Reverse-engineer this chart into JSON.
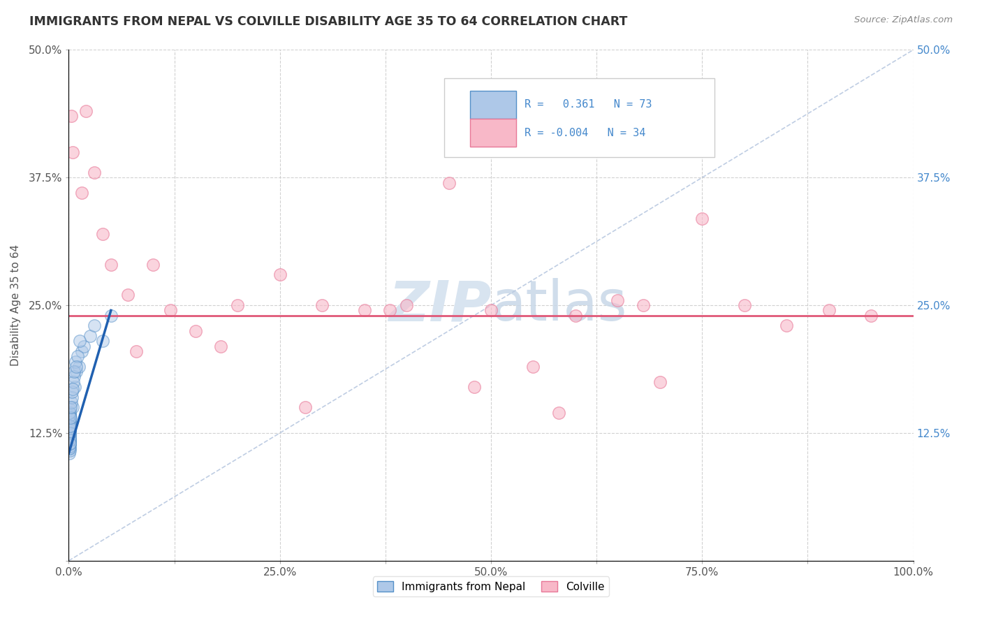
{
  "title": "IMMIGRANTS FROM NEPAL VS COLVILLE DISABILITY AGE 35 TO 64 CORRELATION CHART",
  "source_text": "Source: ZipAtlas.com",
  "ylabel": "Disability Age 35 to 64",
  "xlim": [
    0.0,
    100.0
  ],
  "ylim": [
    0.0,
    50.0
  ],
  "xticks": [
    0.0,
    12.5,
    25.0,
    37.5,
    50.0,
    62.5,
    75.0,
    87.5,
    100.0
  ],
  "yticks": [
    0.0,
    12.5,
    25.0,
    37.5,
    50.0
  ],
  "xtick_labels": [
    "0.0%",
    "",
    "25.0%",
    "",
    "50.0%",
    "",
    "75.0%",
    "",
    "100.0%"
  ],
  "ytick_labels": [
    "",
    "12.5%",
    "25.0%",
    "37.5%",
    "50.0%"
  ],
  "blue_R": 0.361,
  "blue_N": 73,
  "pink_R": -0.004,
  "pink_N": 34,
  "legend_label_blue": "Immigrants from Nepal",
  "legend_label_pink": "Colville",
  "blue_fill_color": "#aec8e8",
  "blue_edge_color": "#5590c8",
  "pink_fill_color": "#f8b8c8",
  "pink_edge_color": "#e87898",
  "blue_line_color": "#2060b0",
  "pink_line_color": "#e05878",
  "diag_line_color": "#b8c8e0",
  "watermark_color": "#d8e4f0",
  "background_color": "#ffffff",
  "grid_color": "#cccccc",
  "pink_line_y": 24.0,
  "blue_line_x1": 0.0,
  "blue_line_y1": 10.5,
  "blue_line_x2": 5.0,
  "blue_line_y2": 24.5,
  "blue_scatter_x": [
    0.08,
    0.1,
    0.12,
    0.15,
    0.1,
    0.12,
    0.08,
    0.15,
    0.1,
    0.12,
    0.08,
    0.1,
    0.12,
    0.08,
    0.1,
    0.12,
    0.15,
    0.08,
    0.1,
    0.12,
    0.08,
    0.1,
    0.12,
    0.08,
    0.1,
    0.12,
    0.15,
    0.08,
    0.1,
    0.12,
    0.08,
    0.1,
    0.12,
    0.08,
    0.1,
    0.12,
    0.15,
    0.08,
    0.1,
    0.12,
    0.08,
    0.1,
    0.12,
    0.08,
    0.1,
    0.12,
    0.15,
    0.08,
    0.1,
    0.12,
    0.5,
    0.7,
    0.9,
    1.2,
    1.5,
    1.8,
    2.5,
    3.0,
    4.0,
    5.0,
    0.2,
    0.3,
    0.4,
    0.6,
    0.8,
    1.0,
    1.3,
    0.25,
    0.35,
    0.55,
    0.65,
    0.45,
    0.85
  ],
  "blue_scatter_y": [
    13.5,
    12.8,
    14.2,
    13.0,
    11.8,
    12.5,
    10.5,
    14.8,
    13.2,
    11.5,
    12.0,
    13.8,
    11.0,
    14.5,
    12.3,
    10.8,
    13.5,
    11.2,
    14.0,
    12.8,
    13.2,
    11.8,
    14.5,
    12.0,
    13.5,
    11.5,
    14.0,
    12.5,
    13.0,
    11.8,
    12.8,
    14.2,
    11.2,
    13.8,
    12.2,
    14.5,
    11.5,
    13.2,
    12.8,
    14.0,
    11.0,
    13.5,
    12.0,
    14.2,
    11.8,
    13.0,
    12.5,
    14.5,
    11.5,
    13.2,
    15.0,
    17.0,
    18.5,
    19.0,
    20.5,
    21.0,
    22.0,
    23.0,
    21.5,
    24.0,
    14.0,
    15.5,
    16.0,
    18.0,
    19.5,
    20.0,
    21.5,
    15.0,
    16.5,
    17.5,
    18.5,
    16.8,
    19.0
  ],
  "pink_scatter_x": [
    0.3,
    0.5,
    2.0,
    3.0,
    1.5,
    4.0,
    5.0,
    7.0,
    10.0,
    15.0,
    20.0,
    25.0,
    30.0,
    35.0,
    40.0,
    50.0,
    55.0,
    60.0,
    70.0,
    80.0,
    85.0,
    90.0,
    95.0,
    45.0,
    65.0,
    75.0,
    8.0,
    12.0,
    18.0,
    28.0,
    38.0,
    48.0,
    58.0,
    68.0
  ],
  "pink_scatter_y": [
    43.5,
    40.0,
    44.0,
    38.0,
    36.0,
    32.0,
    29.0,
    26.0,
    29.0,
    22.5,
    25.0,
    28.0,
    25.0,
    24.5,
    25.0,
    24.5,
    19.0,
    24.0,
    17.5,
    25.0,
    23.0,
    24.5,
    24.0,
    37.0,
    25.5,
    33.5,
    20.5,
    24.5,
    21.0,
    15.0,
    24.5,
    17.0,
    14.5,
    25.0
  ]
}
